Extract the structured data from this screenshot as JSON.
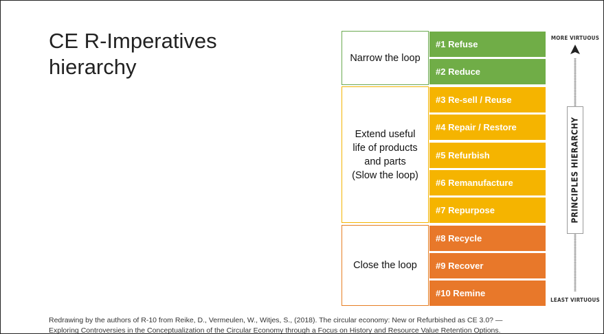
{
  "title": {
    "line1": "CE R-Imperatives",
    "line2": "hierarchy"
  },
  "groups": [
    {
      "label": "Narrow the loop",
      "color": "#6aa84f"
    },
    {
      "label": "Extend useful life of products and parts (Slow the loop)",
      "lines": [
        "Extend useful",
        "life of products",
        "and parts",
        "(Slow the loop)"
      ],
      "color": "#f4b400"
    },
    {
      "label": "Close the loop",
      "color": "#e67e22"
    }
  ],
  "items": [
    {
      "label": "#1 Refuse",
      "color": "#70ad47"
    },
    {
      "label": "#2 Reduce",
      "color": "#70ad47"
    },
    {
      "label": "#3 Re-sell / Reuse",
      "color": "#f5b400"
    },
    {
      "label": "#4 Repair / Restore",
      "color": "#f5b400"
    },
    {
      "label": "#5 Refurbish",
      "color": "#f5b400"
    },
    {
      "label": "#6 Remanufacture",
      "color": "#f5b400"
    },
    {
      "label": "#7 Repurpose",
      "color": "#f5b400"
    },
    {
      "label": "#8 Recycle",
      "color": "#e8782a"
    },
    {
      "label": "#9 Recover",
      "color": "#e8782a"
    },
    {
      "label": "#10 Remine",
      "color": "#e8782a"
    }
  ],
  "scale": {
    "top_label": "MORE VIRTUOUS",
    "bottom_label": "LEAST VIRTUOUS",
    "axis_label": "PRINCIPLES HIERARCHY",
    "icon": "up-arrow-icon"
  },
  "caption": {
    "line1": "Redrawing by the authors of R-10 from Reike, D., Vermeulen, W., Witjes, S., (2018). The circular economy: New or Refurbished as CE 3.0? —",
    "line2": "Exploring Controversies in the Conceptualization of the Circular Economy through a Focus on History and Resource Value Retention Options."
  }
}
